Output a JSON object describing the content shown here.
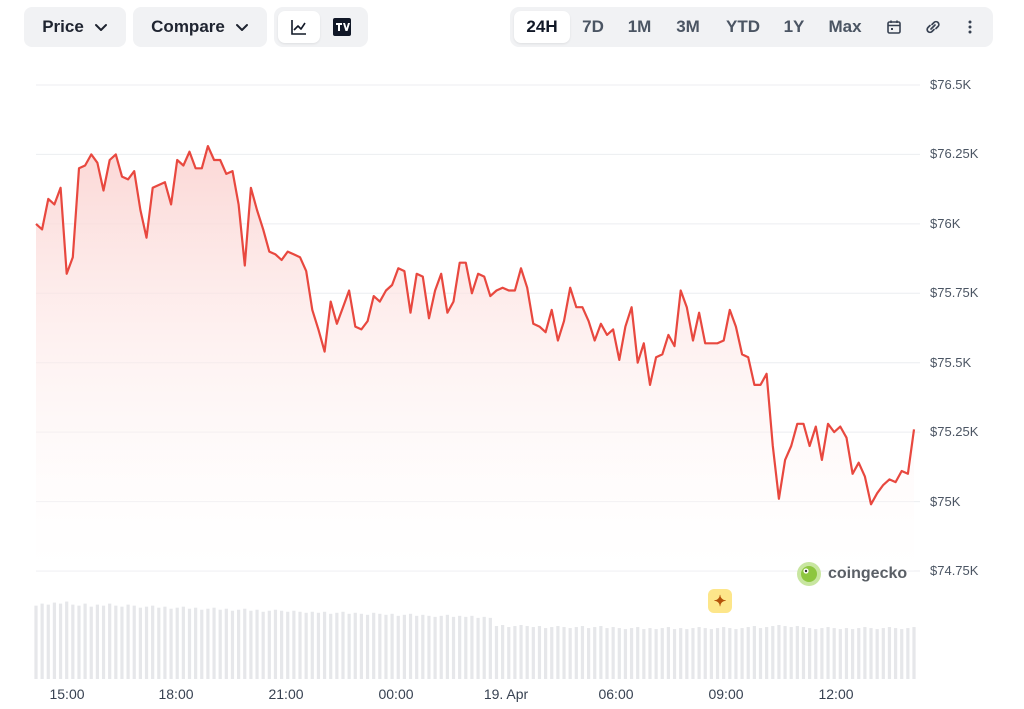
{
  "toolbar": {
    "price_label": "Price",
    "compare_label": "Compare",
    "chart_type_icons": [
      "line-chart-icon",
      "tradingview-icon"
    ],
    "ranges": [
      "24H",
      "7D",
      "1M",
      "3M",
      "YTD",
      "1Y",
      "Max"
    ],
    "active_range": "24H",
    "right_icons": [
      "calendar-icon",
      "link-icon",
      "more-vertical-icon"
    ]
  },
  "watermark": {
    "text": "coingecko"
  },
  "colors": {
    "line": "#e8483f",
    "area_top": "#fbd3d1",
    "area_bottom": "#ffffff",
    "grid": "#eceef1",
    "volume": "#e6e7ea"
  },
  "chart_data": {
    "type": "area",
    "title": "",
    "xlabel": "",
    "ylabel": "",
    "x_tick_labels": [
      "15:00",
      "18:00",
      "21:00",
      "00:00",
      "19. Apr",
      "06:00",
      "09:00",
      "12:00"
    ],
    "y_tick_labels": [
      "$76.5K",
      "$76.25K",
      "$76K",
      "$75.75K",
      "$75.5K",
      "$75.25K",
      "$75K",
      "$74.75K"
    ],
    "ylim": [
      74750,
      76500
    ],
    "grid": true,
    "series": [
      {
        "values": [
          76000,
          75980,
          76090,
          76070,
          76130,
          75820,
          75880,
          76200,
          76210,
          76250,
          76220,
          76120,
          76230,
          76250,
          76170,
          76160,
          76190,
          76050,
          75950,
          76130,
          76140,
          76150,
          76070,
          76230,
          76210,
          76260,
          76200,
          76200,
          76280,
          76230,
          76230,
          76180,
          76190,
          76070,
          75850,
          76130,
          76050,
          75980,
          75900,
          75890,
          75870,
          75900,
          75890,
          75880,
          75830,
          75690,
          75620,
          75540,
          75720,
          75640,
          75700,
          75760,
          75630,
          75620,
          75650,
          75740,
          75720,
          75760,
          75780,
          75840,
          75830,
          75680,
          75820,
          75810,
          75660,
          75760,
          75820,
          75680,
          75720,
          75860,
          75860,
          75750,
          75820,
          75810,
          75740,
          75760,
          75770,
          75760,
          75760,
          75840,
          75770,
          75640,
          75630,
          75610,
          75690,
          75580,
          75650,
          75770,
          75700,
          75700,
          75650,
          75580,
          75640,
          75600,
          75620,
          75510,
          75630,
          75700,
          75500,
          75570,
          75420,
          75520,
          75530,
          75600,
          75560,
          75760,
          75700,
          75580,
          75680,
          75570,
          75570,
          75570,
          75580,
          75690,
          75630,
          75530,
          75520,
          75420,
          75420,
          75460,
          75200,
          75010,
          75150,
          75200,
          75280,
          75280,
          75200,
          75270,
          75150,
          75280,
          75250,
          75270,
          75230,
          75100,
          75140,
          75090,
          74990,
          75030,
          75060,
          75080,
          75070,
          75110,
          75100,
          75260
        ]
      }
    ],
    "volume": [
      0.72,
      0.74,
      0.73,
      0.75,
      0.74,
      0.76,
      0.73,
      0.72,
      0.74,
      0.71,
      0.73,
      0.72,
      0.74,
      0.72,
      0.71,
      0.73,
      0.72,
      0.7,
      0.71,
      0.72,
      0.7,
      0.71,
      0.69,
      0.7,
      0.71,
      0.69,
      0.7,
      0.68,
      0.69,
      0.7,
      0.68,
      0.69,
      0.67,
      0.68,
      0.69,
      0.67,
      0.68,
      0.66,
      0.67,
      0.68,
      0.67,
      0.66,
      0.67,
      0.66,
      0.65,
      0.66,
      0.65,
      0.66,
      0.64,
      0.65,
      0.66,
      0.64,
      0.65,
      0.64,
      0.63,
      0.65,
      0.64,
      0.63,
      0.64,
      0.62,
      0.63,
      0.64,
      0.62,
      0.63,
      0.62,
      0.61,
      0.62,
      0.63,
      0.61,
      0.62,
      0.61,
      0.62,
      0.6,
      0.61,
      0.6,
      0.52,
      0.53,
      0.51,
      0.52,
      0.53,
      0.52,
      0.51,
      0.52,
      0.5,
      0.51,
      0.52,
      0.51,
      0.5,
      0.51,
      0.52,
      0.5,
      0.51,
      0.52,
      0.5,
      0.51,
      0.5,
      0.49,
      0.5,
      0.51,
      0.49,
      0.5,
      0.49,
      0.5,
      0.51,
      0.49,
      0.5,
      0.49,
      0.5,
      0.51,
      0.5,
      0.49,
      0.5,
      0.51,
      0.5,
      0.49,
      0.5,
      0.51,
      0.52,
      0.5,
      0.51,
      0.52,
      0.53,
      0.52,
      0.51,
      0.52,
      0.51,
      0.5,
      0.49,
      0.5,
      0.51,
      0.5,
      0.49,
      0.5,
      0.49,
      0.5,
      0.51,
      0.5,
      0.49,
      0.5,
      0.51,
      0.5,
      0.49,
      0.5,
      0.51
    ]
  }
}
